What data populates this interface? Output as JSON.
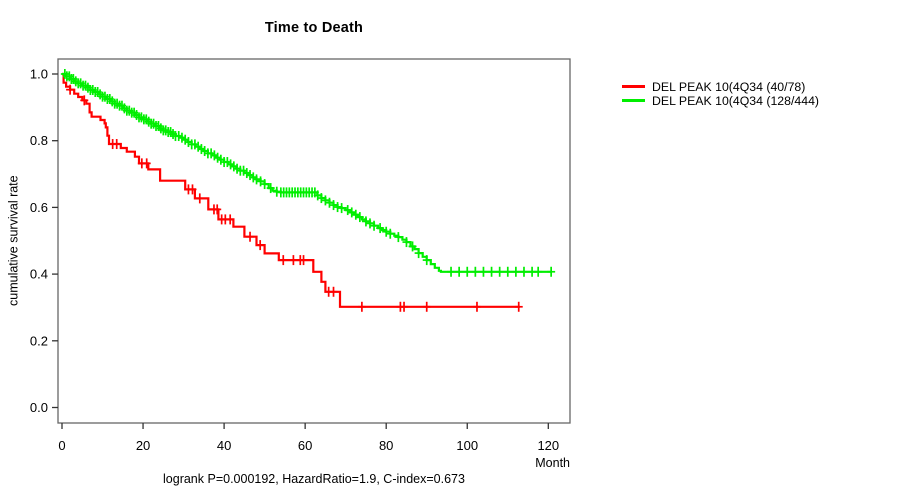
{
  "chart_data": {
    "type": "line",
    "subtype": "kaplan-meier-step-curves",
    "title": "Time to Death",
    "xlabel": "Month",
    "ylabel": "cumulative survival rate",
    "annotation": "logrank P=0.000192, HazardRatio=1.9, C-index=0.673",
    "xlim": [
      0,
      126
    ],
    "ylim": [
      0.0,
      1.0
    ],
    "x_ticks": [
      0,
      20,
      40,
      60,
      80,
      100,
      120
    ],
    "y_ticks": [
      0.0,
      0.2,
      0.4,
      0.6,
      0.8,
      1.0
    ],
    "grid": false,
    "legend_position": "right-outside",
    "axis_color": "#666666",
    "series": [
      {
        "name": "red-group",
        "label": "DEL PEAK 10(4Q34 (40/78)",
        "color": "#ff0000",
        "events_total": "40/78",
        "steps": [
          [
            0,
            1.0
          ],
          [
            0.4,
            0.974
          ],
          [
            1,
            0.962
          ],
          [
            2,
            0.953
          ],
          [
            3,
            0.941
          ],
          [
            4,
            0.931
          ],
          [
            5,
            0.921
          ],
          [
            6,
            0.911
          ],
          [
            6.8,
            0.885
          ],
          [
            7.3,
            0.872
          ],
          [
            9.5,
            0.862
          ],
          [
            10.5,
            0.852
          ],
          [
            10.8,
            0.84
          ],
          [
            11.2,
            0.815
          ],
          [
            11.6,
            0.79
          ],
          [
            14.5,
            0.778
          ],
          [
            16,
            0.767
          ],
          [
            18,
            0.752
          ],
          [
            19,
            0.732
          ],
          [
            21.3,
            0.714
          ],
          [
            24.2,
            0.68
          ],
          [
            30.4,
            0.654
          ],
          [
            32.8,
            0.627
          ],
          [
            36.1,
            0.594
          ],
          [
            38.6,
            0.564
          ],
          [
            42.3,
            0.542
          ],
          [
            45,
            0.512
          ],
          [
            48,
            0.487
          ],
          [
            50,
            0.462
          ],
          [
            53.5,
            0.442
          ],
          [
            62,
            0.407
          ],
          [
            64,
            0.377
          ],
          [
            65,
            0.347
          ],
          [
            68.6,
            0.302
          ],
          [
            113,
            0.302
          ]
        ],
        "censor_times": [
          2,
          5.5,
          12.5,
          13.5,
          19.7,
          20.9,
          31.2,
          32.2,
          34,
          37.5,
          38.3,
          39.4,
          40.3,
          41.5,
          46.4,
          48.9,
          54.6,
          57.1,
          58.8,
          59.6,
          65.8,
          67,
          74,
          83.5,
          84.4,
          90,
          102.4,
          112.7
        ]
      },
      {
        "name": "green-group",
        "label": "DEL PEAK 10(4Q34 (128/444)",
        "color": "#00ee00",
        "events_total": "128/444",
        "steps": [
          [
            0,
            1.0
          ],
          [
            1,
            0.993
          ],
          [
            2,
            0.985
          ],
          [
            3,
            0.978
          ],
          [
            4,
            0.972
          ],
          [
            5,
            0.965
          ],
          [
            6,
            0.959
          ],
          [
            7,
            0.952
          ],
          [
            8,
            0.946
          ],
          [
            9,
            0.939
          ],
          [
            10,
            0.932
          ],
          [
            11,
            0.925
          ],
          [
            12,
            0.918
          ],
          [
            13,
            0.911
          ],
          [
            14,
            0.905
          ],
          [
            15,
            0.897
          ],
          [
            16,
            0.89
          ],
          [
            17,
            0.884
          ],
          [
            18,
            0.877
          ],
          [
            19,
            0.87
          ],
          [
            20,
            0.864
          ],
          [
            21,
            0.857
          ],
          [
            22,
            0.851
          ],
          [
            23,
            0.844
          ],
          [
            24,
            0.837
          ],
          [
            25,
            0.831
          ],
          [
            26,
            0.826
          ],
          [
            27,
            0.82
          ],
          [
            28,
            0.814
          ],
          [
            29,
            0.809
          ],
          [
            30,
            0.803
          ],
          [
            31,
            0.796
          ],
          [
            32,
            0.789
          ],
          [
            33,
            0.782
          ],
          [
            34,
            0.775
          ],
          [
            35,
            0.769
          ],
          [
            36,
            0.762
          ],
          [
            37,
            0.756
          ],
          [
            38,
            0.749
          ],
          [
            39,
            0.743
          ],
          [
            40,
            0.736
          ],
          [
            41,
            0.729
          ],
          [
            42,
            0.723
          ],
          [
            43,
            0.716
          ],
          [
            44,
            0.71
          ],
          [
            45,
            0.703
          ],
          [
            46,
            0.697
          ],
          [
            47,
            0.69
          ],
          [
            48,
            0.684
          ],
          [
            49,
            0.678
          ],
          [
            50,
            0.67
          ],
          [
            51,
            0.658
          ],
          [
            52,
            0.65
          ],
          [
            53,
            0.647
          ],
          [
            54,
            0.645
          ],
          [
            63,
            0.636
          ],
          [
            64,
            0.628
          ],
          [
            65,
            0.621
          ],
          [
            66,
            0.614
          ],
          [
            67,
            0.607
          ],
          [
            68,
            0.601
          ],
          [
            69,
            0.598
          ],
          [
            70,
            0.592
          ],
          [
            71,
            0.585
          ],
          [
            72,
            0.578
          ],
          [
            73,
            0.571
          ],
          [
            74,
            0.564
          ],
          [
            75,
            0.558
          ],
          [
            76,
            0.552
          ],
          [
            77,
            0.545
          ],
          [
            78,
            0.538
          ],
          [
            79,
            0.532
          ],
          [
            80,
            0.527
          ],
          [
            81,
            0.521
          ],
          [
            82,
            0.515
          ],
          [
            83,
            0.511
          ],
          [
            84,
            0.503
          ],
          [
            85,
            0.496
          ],
          [
            86,
            0.483
          ],
          [
            87,
            0.475
          ],
          [
            88,
            0.463
          ],
          [
            89,
            0.452
          ],
          [
            90,
            0.442
          ],
          [
            91,
            0.43
          ],
          [
            92,
            0.419
          ],
          [
            93,
            0.41
          ],
          [
            93.5,
            0.407
          ],
          [
            120.7,
            0.407
          ]
        ],
        "censor_times": [
          0.7,
          1.2,
          1.8,
          2.3,
          2.8,
          3.4,
          4,
          4.6,
          5.2,
          5.8,
          6.4,
          7,
          7.6,
          8.2,
          8.8,
          9.4,
          10,
          10.6,
          11.2,
          11.8,
          12.4,
          13,
          13.6,
          14.2,
          14.8,
          15.4,
          16,
          16.6,
          17.2,
          17.8,
          18.4,
          19,
          19.6,
          20.2,
          20.8,
          21.4,
          22,
          22.6,
          23.2,
          23.8,
          24.4,
          25,
          25.6,
          26.2,
          26.8,
          27.4,
          28,
          28.8,
          29.6,
          30.4,
          31.2,
          32,
          32.8,
          33.6,
          34.4,
          35.2,
          36,
          36.8,
          37.6,
          38.4,
          39.2,
          40,
          40.8,
          41.6,
          42.4,
          43.2,
          44,
          44.8,
          45.6,
          46.4,
          47.2,
          48,
          49,
          50,
          51.5,
          53,
          54,
          54.7,
          55.4,
          56.1,
          56.8,
          57.5,
          58.2,
          58.9,
          59.6,
          60.3,
          61,
          61.7,
          62.4,
          63.1,
          64,
          65,
          66,
          67,
          68,
          69,
          70.5,
          71.5,
          72.5,
          73.5,
          75,
          76,
          77,
          78.5,
          80,
          81,
          83,
          85,
          86.5,
          88,
          90,
          96,
          98,
          100,
          102,
          104,
          106,
          108,
          110,
          112,
          114,
          116,
          117.5,
          120.7
        ]
      }
    ]
  },
  "colors": {
    "background": "#ffffff",
    "text": "#000000",
    "axis": "#666666"
  }
}
